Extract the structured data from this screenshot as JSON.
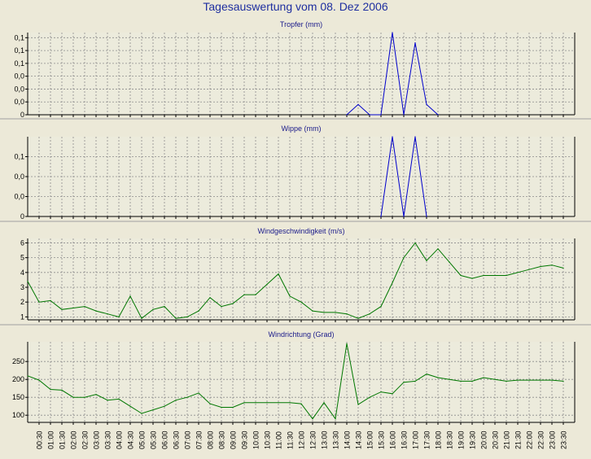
{
  "page": {
    "title": "Tagesauswertung vom 08. Dez 2006"
  },
  "chart_data": [
    {
      "type": "line",
      "title": "Tropfer (mm)",
      "color": "#0000cc",
      "ylim": [
        0,
        0.16
      ],
      "ytick_values": [
        0.0,
        0.025,
        0.05,
        0.075,
        0.1,
        0.125,
        0.15
      ],
      "ytick_labels": [
        "0",
        "0,0",
        "0,0",
        "0,0",
        "0,1",
        "0,1",
        "0,1"
      ],
      "x": [
        "14:00",
        "14:30",
        "15:00",
        "15:30",
        "16:00",
        "16:30",
        "17:00",
        "17:30",
        "18:00"
      ],
      "values": [
        0,
        0.02,
        0,
        0,
        0.16,
        0,
        0.14,
        0.02,
        0
      ]
    },
    {
      "type": "line",
      "title": "Wippe (mm)",
      "color": "#0000cc",
      "ylim": [
        0,
        0.16
      ],
      "ytick_values": [
        0.0,
        0.04,
        0.08,
        0.12
      ],
      "ytick_labels": [
        "0",
        "0,0",
        "0,0",
        "0,1"
      ],
      "x": [
        "15:30",
        "16:00",
        "16:30",
        "17:00",
        "17:30"
      ],
      "values": [
        0,
        0.16,
        0,
        0.16,
        0
      ]
    },
    {
      "type": "line",
      "title": "Windgeschwindigkeit (m/s)",
      "color": "#007700",
      "ylim": [
        0.8,
        6.3
      ],
      "ytick_values": [
        1,
        2,
        3,
        4,
        5,
        6
      ],
      "ytick_labels": [
        "1",
        "2",
        "3",
        "4",
        "5",
        "6"
      ],
      "x": [
        "00:00",
        "00:30",
        "01:00",
        "01:30",
        "02:00",
        "02:30",
        "03:00",
        "03:30",
        "04:00",
        "04:30",
        "05:00",
        "05:30",
        "06:00",
        "06:30",
        "07:00",
        "07:30",
        "08:00",
        "08:30",
        "09:00",
        "09:30",
        "10:00",
        "10:30",
        "11:00",
        "11:30",
        "12:00",
        "12:30",
        "13:00",
        "13:30",
        "14:00",
        "14:30",
        "15:00",
        "15:30",
        "16:00",
        "16:30",
        "17:00",
        "17:30",
        "18:00",
        "18:30",
        "19:00",
        "19:30",
        "20:00",
        "20:30",
        "21:00",
        "21:30",
        "22:00",
        "22:30",
        "23:00",
        "23:30"
      ],
      "values": [
        3.4,
        2.0,
        2.1,
        1.5,
        1.6,
        1.7,
        1.4,
        1.2,
        1.0,
        2.4,
        0.9,
        1.5,
        1.7,
        0.9,
        1.0,
        1.4,
        2.3,
        1.7,
        1.9,
        2.5,
        2.5,
        3.2,
        3.9,
        2.4,
        2.0,
        1.4,
        1.3,
        1.3,
        1.2,
        0.9,
        1.2,
        1.7,
        3.3,
        5.0,
        6.0,
        4.8,
        5.6,
        4.7,
        3.8,
        3.6,
        3.8,
        3.8,
        3.8,
        4.0,
        4.2,
        4.4,
        4.5,
        4.3
      ]
    },
    {
      "type": "line",
      "title": "Windrichtung (Grad)",
      "color": "#007700",
      "ylim": [
        80,
        305
      ],
      "ytick_values": [
        100,
        150,
        200,
        250
      ],
      "ytick_labels": [
        "100",
        "150",
        "200",
        "250"
      ],
      "x": [
        "00:00",
        "00:30",
        "01:00",
        "01:30",
        "02:00",
        "02:30",
        "03:00",
        "03:30",
        "04:00",
        "04:30",
        "05:00",
        "05:30",
        "06:00",
        "06:30",
        "07:00",
        "07:30",
        "08:00",
        "08:30",
        "09:00",
        "09:30",
        "10:00",
        "10:30",
        "11:00",
        "11:30",
        "12:00",
        "12:30",
        "13:00",
        "13:30",
        "14:00",
        "14:30",
        "15:00",
        "15:30",
        "16:00",
        "16:30",
        "17:00",
        "17:30",
        "18:00",
        "18:30",
        "19:00",
        "19:30",
        "20:00",
        "20:30",
        "21:00",
        "21:30",
        "22:00",
        "22:30",
        "23:00",
        "23:30"
      ],
      "values": [
        210,
        198,
        172,
        170,
        150,
        150,
        158,
        142,
        145,
        125,
        105,
        115,
        125,
        142,
        150,
        162,
        132,
        122,
        122,
        135,
        135,
        135,
        135,
        135,
        132,
        90,
        135,
        90,
        300,
        130,
        150,
        165,
        160,
        192,
        195,
        215,
        205,
        200,
        195,
        195,
        205,
        200,
        195,
        198,
        198,
        198,
        198,
        195
      ]
    }
  ],
  "x_axis": {
    "labels": [
      "00:30",
      "01:00",
      "01:30",
      "02:00",
      "02:30",
      "03:00",
      "03:30",
      "04:00",
      "04:30",
      "05:00",
      "05:30",
      "06:00",
      "06:30",
      "07:00",
      "07:30",
      "08:00",
      "08:30",
      "09:00",
      "09:30",
      "10:00",
      "10:30",
      "11:00",
      "11:30",
      "12:00",
      "12:30",
      "13:00",
      "13:30",
      "14:00",
      "14:30",
      "15:00",
      "15:30",
      "16:00",
      "16:30",
      "17:00",
      "17:30",
      "18:00",
      "18:30",
      "19:00",
      "19:30",
      "20:00",
      "20:30",
      "21:00",
      "21:30",
      "22:00",
      "22:30",
      "23:00",
      "23:30"
    ]
  }
}
